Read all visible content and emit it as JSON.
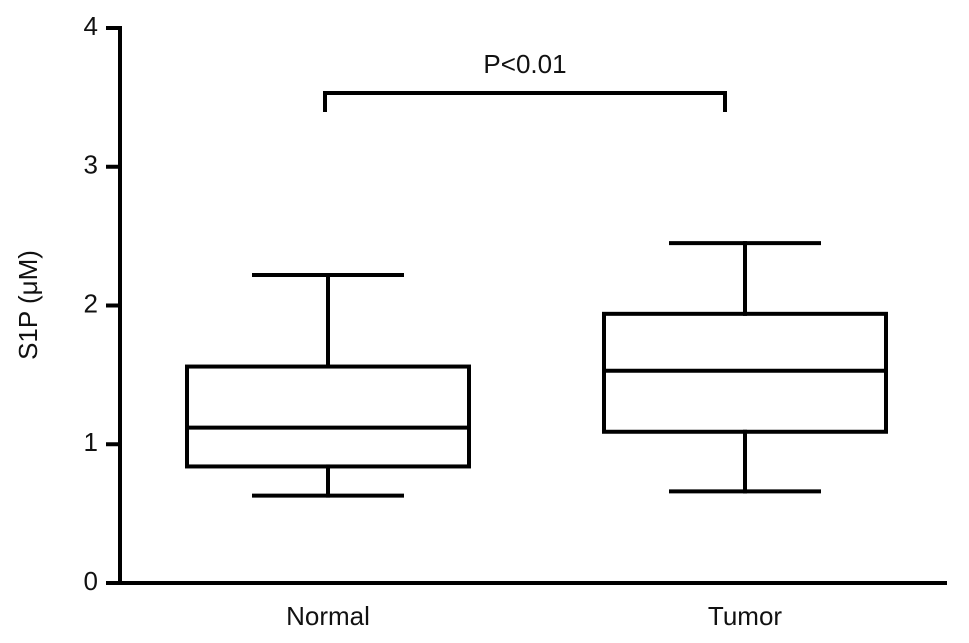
{
  "chart_data": {
    "type": "box",
    "y_label": "S1P (μM)",
    "annotation": "P<0.01",
    "categories": [
      "Normal",
      "Tumor"
    ],
    "boxes": [
      {
        "min": 0.63,
        "q1": 0.84,
        "median": 1.12,
        "q3": 1.56,
        "max": 2.22
      },
      {
        "min": 0.66,
        "q1": 1.09,
        "median": 1.53,
        "q3": 1.94,
        "max": 2.45
      }
    ],
    "color": "#000000",
    "ylim": [
      0,
      4
    ],
    "yticks": [
      0,
      1,
      2,
      3,
      4
    ]
  }
}
